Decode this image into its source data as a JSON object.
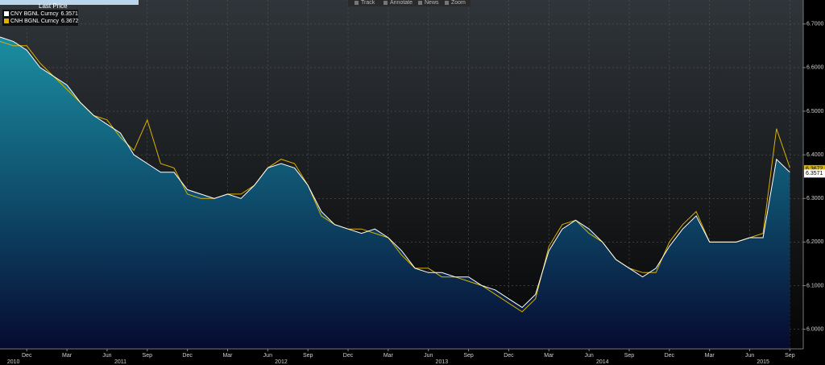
{
  "chart_data": {
    "type": "area-line",
    "legend_title": "Last Price",
    "toolbar": [
      "Track",
      "Annotate",
      "News",
      "Zoom"
    ],
    "x": [
      "2010-10",
      "2010-11",
      "2010-12",
      "2011-01",
      "2011-02",
      "2011-03",
      "2011-04",
      "2011-05",
      "2011-06",
      "2011-07",
      "2011-08",
      "2011-09",
      "2011-10",
      "2011-11",
      "2011-12",
      "2012-01",
      "2012-02",
      "2012-03",
      "2012-04",
      "2012-05",
      "2012-06",
      "2012-07",
      "2012-08",
      "2012-09",
      "2012-10",
      "2012-11",
      "2012-12",
      "2013-01",
      "2013-02",
      "2013-03",
      "2013-04",
      "2013-05",
      "2013-06",
      "2013-07",
      "2013-08",
      "2013-09",
      "2013-10",
      "2013-11",
      "2013-12",
      "2014-01",
      "2014-02",
      "2014-03",
      "2014-04",
      "2014-05",
      "2014-06",
      "2014-07",
      "2014-08",
      "2014-09",
      "2014-10",
      "2014-11",
      "2014-12",
      "2015-01",
      "2015-02",
      "2015-03",
      "2015-04",
      "2015-05",
      "2015-06",
      "2015-07",
      "2015-08",
      "2015-09"
    ],
    "series": [
      {
        "name": "CNY BGNL Curncy",
        "last": 6.3571,
        "color": "#ffffff",
        "values": [
          6.67,
          6.66,
          6.64,
          6.6,
          6.58,
          6.56,
          6.52,
          6.49,
          6.47,
          6.45,
          6.4,
          6.38,
          6.36,
          6.36,
          6.32,
          6.31,
          6.3,
          6.31,
          6.3,
          6.33,
          6.37,
          6.38,
          6.37,
          6.33,
          6.27,
          6.24,
          6.23,
          6.22,
          6.23,
          6.21,
          6.18,
          6.14,
          6.13,
          6.13,
          6.12,
          6.12,
          6.1,
          6.09,
          6.07,
          6.05,
          6.08,
          6.18,
          6.23,
          6.25,
          6.23,
          6.2,
          6.16,
          6.14,
          6.12,
          6.14,
          6.19,
          6.23,
          6.26,
          6.2,
          6.2,
          6.2,
          6.21,
          6.21,
          6.39,
          6.36
        ]
      },
      {
        "name": "CNH BGNL Curncy",
        "last": 6.3672,
        "color": "#d9b100",
        "values": [
          6.66,
          6.65,
          6.65,
          6.61,
          6.58,
          6.55,
          6.52,
          6.49,
          6.48,
          6.44,
          6.41,
          6.48,
          6.38,
          6.37,
          6.31,
          6.3,
          6.3,
          6.31,
          6.31,
          6.33,
          6.37,
          6.39,
          6.38,
          6.33,
          6.26,
          6.24,
          6.23,
          6.23,
          6.22,
          6.21,
          6.17,
          6.14,
          6.14,
          6.12,
          6.12,
          6.11,
          6.1,
          6.08,
          6.06,
          6.04,
          6.07,
          6.19,
          6.24,
          6.25,
          6.22,
          6.2,
          6.16,
          6.14,
          6.13,
          6.13,
          6.2,
          6.24,
          6.27,
          6.2,
          6.2,
          6.2,
          6.21,
          6.22,
          6.46,
          6.37
        ]
      }
    ],
    "xlim": [
      "2010-10",
      "2015-10"
    ],
    "xticks": [
      {
        "value": "2010-12",
        "label": "Dec"
      },
      {
        "value": "2011-03",
        "label": "Mar"
      },
      {
        "value": "2011-06",
        "label": "Jun"
      },
      {
        "value": "2011-09",
        "label": "Sep"
      },
      {
        "value": "2011-12",
        "label": "Dec"
      },
      {
        "value": "2012-03",
        "label": "Mar"
      },
      {
        "value": "2012-06",
        "label": "Jun"
      },
      {
        "value": "2012-09",
        "label": "Sep"
      },
      {
        "value": "2012-12",
        "label": "Dec"
      },
      {
        "value": "2013-03",
        "label": "Mar"
      },
      {
        "value": "2013-06",
        "label": "Jun"
      },
      {
        "value": "2013-09",
        "label": "Sep"
      },
      {
        "value": "2013-12",
        "label": "Dec"
      },
      {
        "value": "2014-03",
        "label": "Mar"
      },
      {
        "value": "2014-06",
        "label": "Jun"
      },
      {
        "value": "2014-09",
        "label": "Sep"
      },
      {
        "value": "2014-12",
        "label": "Dec"
      },
      {
        "value": "2015-03",
        "label": "Mar"
      },
      {
        "value": "2015-06",
        "label": "Jun"
      },
      {
        "value": "2015-09",
        "label": "Sep"
      }
    ],
    "year_labels": [
      {
        "value": "2010-11",
        "label": "2010"
      },
      {
        "value": "2011-07",
        "label": "2011"
      },
      {
        "value": "2012-07",
        "label": "2012"
      },
      {
        "value": "2013-07",
        "label": "2013"
      },
      {
        "value": "2014-07",
        "label": "2014"
      },
      {
        "value": "2015-07",
        "label": "2015"
      }
    ],
    "ylim": [
      5.955,
      6.755
    ],
    "yticks": [
      {
        "value": 6.0,
        "label": "6.0000"
      },
      {
        "value": 6.1,
        "label": "6.1000"
      },
      {
        "value": 6.2,
        "label": "6.2000"
      },
      {
        "value": 6.3,
        "label": "6.3000"
      },
      {
        "value": 6.4,
        "label": "6.4000"
      },
      {
        "value": 6.5,
        "label": "6.5000"
      },
      {
        "value": 6.6,
        "label": "6.6000"
      },
      {
        "value": 6.7,
        "label": "6.7000"
      }
    ],
    "grid": true
  }
}
